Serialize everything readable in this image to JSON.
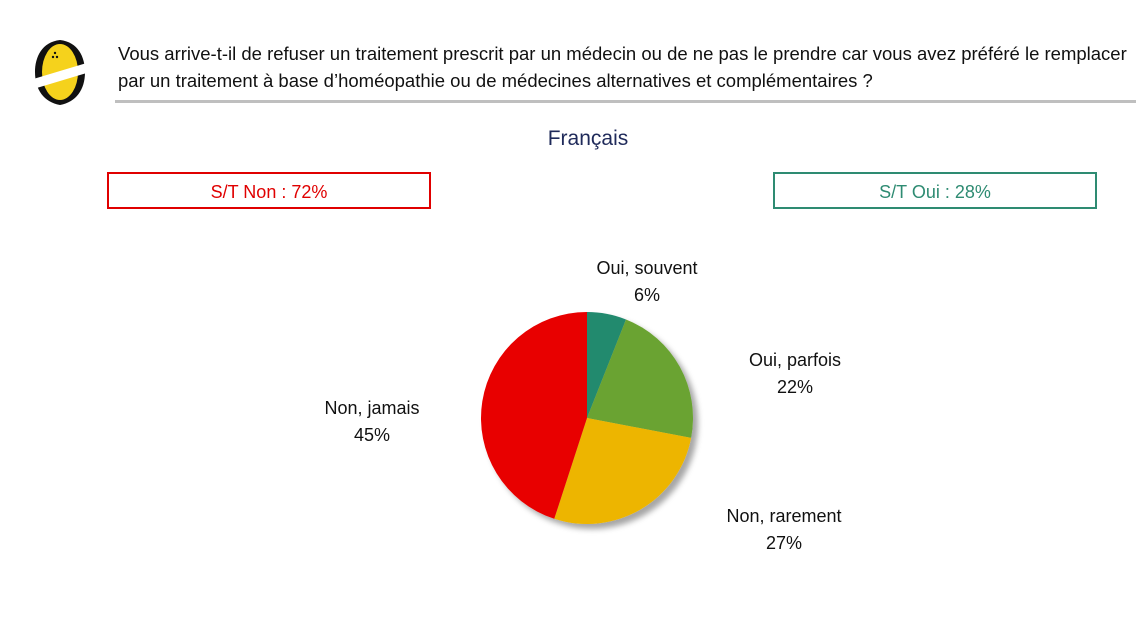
{
  "question": "Vous arrive-t-il de refuser un traitement prescrit par un médecin ou de ne pas le prendre car vous avez préféré le remplacer par un traitement à base d’homéopathie ou de médecines alternatives et complémentaires ?",
  "subtitle": "Français",
  "summary": {
    "non": "S/T Non : 72%",
    "oui": "S/T Oui : 28%"
  },
  "chart_data": {
    "type": "pie",
    "title": "Français",
    "slices": [
      {
        "label": "Oui, souvent",
        "value": 6,
        "value_label": "6%",
        "color": "#238a6e"
      },
      {
        "label": "Oui, parfois",
        "value": 22,
        "value_label": "22%",
        "color": "#6aa330"
      },
      {
        "label": "Non, rarement",
        "value": 27,
        "value_label": "27%",
        "color": "#edb500"
      },
      {
        "label": "Non, jamais",
        "value": 45,
        "value_label": "45%",
        "color": "#e80000"
      }
    ]
  }
}
